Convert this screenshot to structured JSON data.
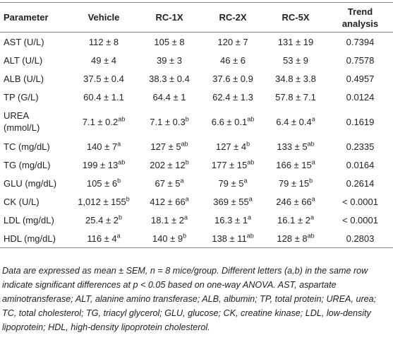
{
  "table": {
    "header": [
      "Parameter",
      "Vehicle",
      "RC-1X",
      "RC-2X",
      "RC-5X",
      "Trend\nanalysis"
    ],
    "rows": [
      [
        "AST (U/L)",
        "112 ± 8",
        "105 ± 8",
        "120 ± 7",
        "131 ± 19",
        "0.7394"
      ],
      [
        "ALT (U/L)",
        "49 ± 4",
        "39 ± 3",
        "46 ± 6",
        "53 ± 9",
        "0.7578"
      ],
      [
        "ALB (U/L)",
        "37.5 ± 0.4",
        "38.3 ± 0.4",
        "37.6 ± 0.9",
        "34.8 ± 3.8",
        "0.4957"
      ],
      [
        "TP (G/L)",
        "60.4 ± 1.1",
        "64.4 ± 1",
        "62.4 ± 1.3",
        "57.8 ± 7.1",
        "0.0124"
      ],
      [
        "UREA\n(mmol/L)",
        [
          "7.1 ± 0.2",
          "ab"
        ],
        [
          "7.1 ± 0.3",
          "b"
        ],
        [
          "6.6 ± 0.1",
          "ab"
        ],
        [
          "6.4 ± 0.4",
          "a"
        ],
        "0.1619"
      ],
      [
        "TC (mg/dL)",
        [
          "140 ± 7",
          "a"
        ],
        [
          "127 ± 5",
          "ab"
        ],
        [
          "127 ± 4",
          "b"
        ],
        [
          "133 ± 5",
          "ab"
        ],
        "0.2335"
      ],
      [
        "TG (mg/dL)",
        [
          "199 ± 13",
          "ab"
        ],
        [
          "202 ± 12",
          "b"
        ],
        [
          "177 ± 15",
          "ab"
        ],
        [
          "166 ± 15",
          "a"
        ],
        "0.0164"
      ],
      [
        "GLU (mg/dL)",
        [
          "105 ± 6",
          "b"
        ],
        [
          "67 ± 5",
          "a"
        ],
        [
          "79 ± 5",
          "a"
        ],
        [
          "79 ± 15",
          "b"
        ],
        "0.2614"
      ],
      [
        "CK (U/L)",
        [
          "1,012 ± 155",
          "b"
        ],
        [
          "412 ± 66",
          "a"
        ],
        [
          "369 ± 55",
          "a"
        ],
        [
          "246 ± 66",
          "a"
        ],
        "< 0.0001"
      ],
      [
        "LDL (mg/dL)",
        [
          "25.4 ± 2",
          "b"
        ],
        [
          "18.1 ± 2",
          "a"
        ],
        [
          "16.3 ± 1",
          "a"
        ],
        [
          "16.1 ± 2",
          "a"
        ],
        "< 0.0001"
      ],
      [
        "HDL (mg/dL)",
        [
          "116 ± 4",
          "a"
        ],
        [
          "140 ± 9",
          "b"
        ],
        [
          "138 ± 11",
          "ab"
        ],
        [
          "128 ± 8",
          "ab"
        ],
        "0.2803"
      ]
    ],
    "footnote": "Data are expressed as mean ± SEM, n = 8 mice/group. Different letters (a,b) in the same row indicate significant differences at p < 0.05 based on one-way ANOVA. AST, aspartate aminotransferase; ALT, alanine amino transferase; ALB, albumin; TP, total protein; UREA, urea; TC, total cholesterol; TG, triacyl glycerol; GLU, glucose; CK, creatine kinase; LDL, low-density lipoprotein; HDL, high-density lipoprotein cholesterol."
  }
}
